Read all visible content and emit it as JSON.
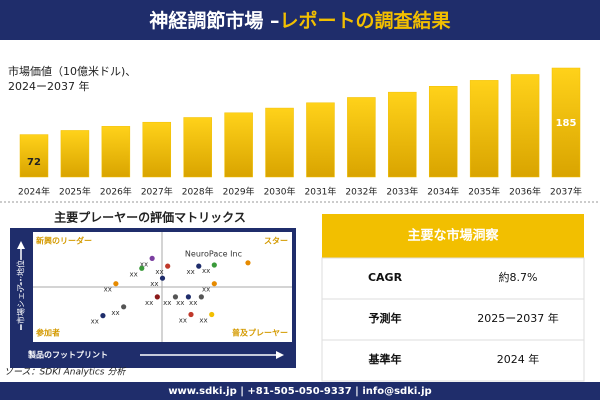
{
  "header": {
    "title_main": "神経調節市場 –",
    "title_accent": "レポートの調査結果"
  },
  "chart_data": [
    {
      "type": "bar",
      "title": [
        "市場価値（10億米ドル)、",
        "2024ー2037 年"
      ],
      "categories": [
        "2024年",
        "2025年",
        "2026年",
        "2027年",
        "2028年",
        "2029年",
        "2030年",
        "2031年",
        "2032年",
        "2033年",
        "2034年",
        "2035年",
        "2036年",
        "2037年"
      ],
      "values": [
        72,
        79,
        86,
        93,
        101,
        109,
        117,
        126,
        135,
        144,
        154,
        164,
        174,
        185
      ],
      "color": "#f2bf00"
    },
    {
      "type": "scatter",
      "title": "主要プレーヤーの評価マトリックス",
      "quadrants": [
        "新興のリーダー",
        "スター",
        "参加者",
        "普及プレーヤー"
      ],
      "y_label": "市場シェア・地位",
      "x_label": "製品のフットプリント",
      "xlim": [
        0,
        100
      ],
      "ylim": [
        0,
        100
      ],
      "x": [
        46,
        52,
        42,
        32,
        50,
        64,
        70,
        83,
        70,
        65,
        60,
        55,
        48,
        35,
        27,
        61,
        69
      ],
      "values": [
        76,
        69,
        67,
        53,
        58,
        69,
        70,
        72,
        53,
        41,
        41,
        41,
        41,
        32,
        24,
        25,
        25
      ],
      "labels": [
        "xx",
        "xx",
        "xx",
        "xx",
        "xx",
        "xx",
        "xx",
        "NeuroPace Inc",
        "xx",
        "xx",
        "xx",
        "xx",
        "xx",
        "xx",
        "xx",
        "xx",
        "xx"
      ],
      "colors": [
        "#7b3fa0",
        "#c0392b",
        "#3a9a3a",
        "#e68a00",
        "#1f2d6b",
        "#1f2d6b",
        "#3a9a3a",
        "#e68a00",
        "#e68a00",
        "#555555",
        "#1f2d6b",
        "#555555",
        "#8b1a1a",
        "#555555",
        "#1f2d6b",
        "#c0392b",
        "#f2bf00"
      ]
    }
  ],
  "table": {
    "title": "主要な市場洞察",
    "rows": [
      [
        "CAGR",
        "約8.7%"
      ],
      [
        "予測年",
        "2025ー2037 年"
      ],
      [
        "基準年",
        "2024 年"
      ]
    ]
  },
  "source": "ソース：SDKI Analytics 分析",
  "footer": "www.sdki.jp | +81-505-050-9337 | info@sdki.jp"
}
